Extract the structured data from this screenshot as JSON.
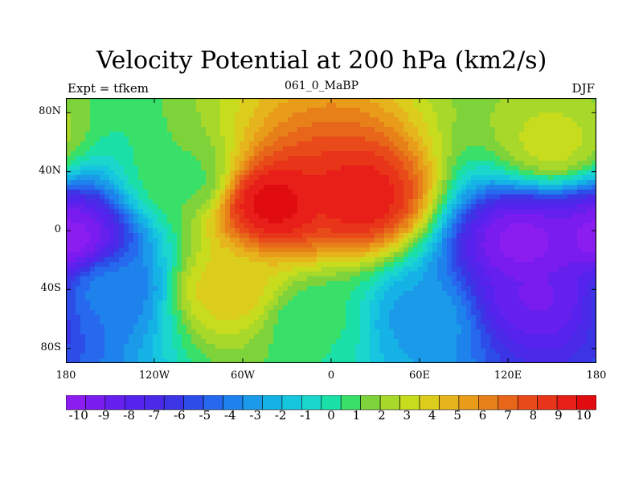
{
  "title": "Velocity Potential at 200 hPa (km2/s)",
  "left_label": "Expt = tfkem",
  "center_label": "061_0_MaBP",
  "right_label": "DJF",
  "chart_data": {
    "type": "heatmap",
    "title": "Velocity Potential at 200 hPa (km2/s)",
    "x_ticks": [
      "180",
      "120W",
      "60W",
      "0",
      "60E",
      "120E",
      "180"
    ],
    "x_tick_values": [
      -180,
      -120,
      -60,
      0,
      60,
      120,
      180
    ],
    "y_ticks": [
      "80N",
      "40N",
      "0",
      "40S",
      "80S"
    ],
    "y_tick_values": [
      80,
      40,
      0,
      -40,
      -80
    ],
    "xlim": [
      -180,
      180
    ],
    "ylim": [
      -90,
      90
    ],
    "colorbar_ticks": [
      "-10",
      "-9",
      "-8",
      "-7",
      "-6",
      "-5",
      "-4",
      "-3",
      "-2",
      "-1",
      "0",
      "1",
      "2",
      "3",
      "4",
      "5",
      "6",
      "7",
      "8",
      "9",
      "10"
    ],
    "colorbar_range": [
      -10.5,
      10.5
    ],
    "colorbar_colors": [
      "#8c1df0",
      "#7a1cf0",
      "#6620ee",
      "#5522ee",
      "#4a2ae8",
      "#3b35e6",
      "#2d4de8",
      "#2668ee",
      "#1e82ec",
      "#1a9ae8",
      "#15b2e6",
      "#16c6de",
      "#1ad6cc",
      "#1ae0a8",
      "#38e06a",
      "#7ed23a",
      "#a8d82a",
      "#c8dc1e",
      "#dccc1c",
      "#e6b41c",
      "#e89c1a",
      "#e8801a",
      "#e8661a",
      "#e84a1a",
      "#e83418",
      "#e81e18",
      "#e00c10"
    ],
    "field_centers": [
      {
        "lon": -40,
        "lat": 18,
        "value": 10
      },
      {
        "lon": 20,
        "lat": 22,
        "value": 9.5
      },
      {
        "lon": -70,
        "lat": -40,
        "value": 4
      },
      {
        "lon": 130,
        "lat": -8,
        "value": -10
      },
      {
        "lon": 140,
        "lat": -45,
        "value": -9
      },
      {
        "lon": -178,
        "lat": -5,
        "value": -10
      },
      {
        "lon": 150,
        "lat": 60,
        "value": 3
      },
      {
        "lon": -100,
        "lat": 35,
        "value": 1
      },
      {
        "lon": -150,
        "lat": -40,
        "value": -4
      },
      {
        "lon": -10,
        "lat": -60,
        "value": 0.5
      },
      {
        "lon": 60,
        "lat": -60,
        "value": -3
      }
    ]
  }
}
